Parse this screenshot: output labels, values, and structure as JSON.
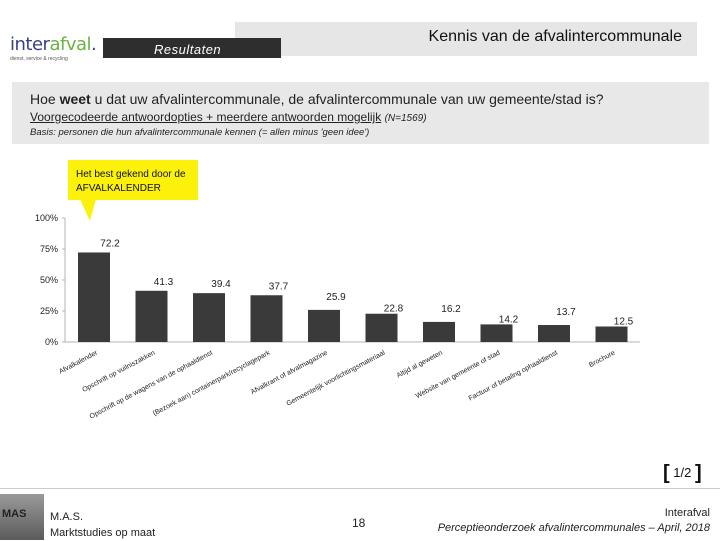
{
  "header": {
    "logo": {
      "brand_main": "inter",
      "brand_accent": "afval",
      "brand_suffix": ".",
      "tagline": "dienst, service & recycling"
    },
    "title": "Kennis van de afvalintercommunale",
    "section": "Resultaten"
  },
  "question": {
    "text_pre": "Hoe ",
    "text_bold": "weet",
    "text_post": " u dat uw afvalintercommunale, de afvalintercommunale van uw gemeente/stad is?",
    "answer_type": "Voorgecodeerde antwoordopties + meerdere antwoorden mogelijk",
    "n": "(N=1569)",
    "basis": "Basis: personen die hun afvalintercommunale kennen (= allen minus 'geen idee')"
  },
  "callout": {
    "text": "Het best gekend door de AFVALKALENDER"
  },
  "chart_data": {
    "type": "bar",
    "categories": [
      "Afvalkalender",
      "Opschrift op vuilniszakken",
      "Opschrift op de wagens van de ophaaldienst",
      "Bezoek aan containerpark/recyclagepark",
      "Afvalkrant of afvalmagazine",
      "Gemeentelijk voorlichtingsmateriaal",
      "Altijd al geweten",
      "Website van gemeente of stad",
      "Factuur of betaling ophaaldienst",
      "Brochure"
    ],
    "axis_labels": [
      "Afvalkalender",
      "Opschrift op vuilniszakken",
      "Opschrift op de wagens van de ophaaldienst",
      "(Bezoek aan) containerpark/recyclagepark",
      "Afvalkrant of afvalmagazine",
      "Gemeentelijk voorlichtingsmateriaal",
      "Altijd al geweten",
      "Website van gemeente of stad",
      "Factuur of betaling ophaaldienst",
      "Brochure"
    ],
    "values": [
      72.2,
      41.3,
      39.4,
      37.7,
      25.9,
      22.8,
      16.2,
      14.2,
      13.7,
      12.5
    ],
    "value_labels": [
      "72.2",
      "41.3",
      "39.4",
      "37.7",
      "25.9",
      "22.8",
      "16.2",
      "14.2",
      "13.7",
      "12.5"
    ],
    "yticks": [
      0,
      25,
      50,
      75,
      100
    ],
    "ytick_labels": [
      "0%",
      "25%",
      "50%",
      "75%",
      "100%"
    ],
    "ylim": [
      0,
      100
    ],
    "bar_color": "#3a3a3a",
    "grid": false,
    "title": "",
    "xlabel": "",
    "ylabel": ""
  },
  "page_indicator": {
    "current": "1/2",
    "open_bracket": "[",
    "close_bracket": "]"
  },
  "footer": {
    "photo_text": "MAS",
    "org_line1": "M.A.S.",
    "org_line2": "Marktstudies op maat",
    "page_number": "18",
    "client": "Interafval",
    "study": "Perceptieonderzoek afvalintercommunales – April, 2018"
  }
}
